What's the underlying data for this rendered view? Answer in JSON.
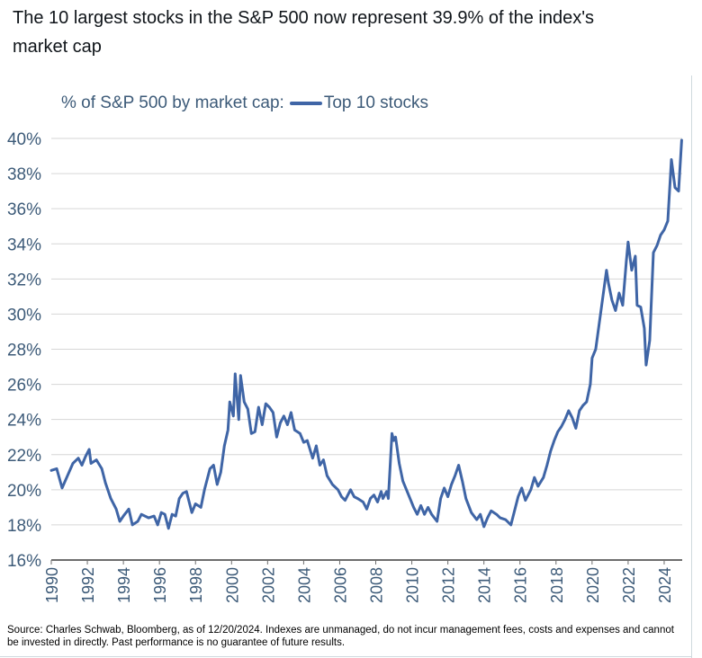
{
  "post": {
    "headline": "The 10 largest stocks in the S&P 500 now represent 39.9% of the index's market cap"
  },
  "colors": {
    "line": "#3f65a6",
    "grid": "#d6d6d6",
    "axis": "#6e6e6e",
    "label": "#3c5a78"
  },
  "chart_data": {
    "type": "line",
    "title": "% of S&P 500 by market cap:",
    "series": [
      {
        "name": "Top 10 stocks",
        "points": [
          [
            1990.0,
            21.1
          ],
          [
            1990.3,
            21.2
          ],
          [
            1990.6,
            20.1
          ],
          [
            1990.9,
            20.8
          ],
          [
            1991.2,
            21.5
          ],
          [
            1991.5,
            21.8
          ],
          [
            1991.7,
            21.4
          ],
          [
            1991.9,
            21.9
          ],
          [
            1992.1,
            22.3
          ],
          [
            1992.2,
            21.5
          ],
          [
            1992.5,
            21.7
          ],
          [
            1992.8,
            21.2
          ],
          [
            1993.0,
            20.4
          ],
          [
            1993.3,
            19.5
          ],
          [
            1993.6,
            18.9
          ],
          [
            1993.8,
            18.2
          ],
          [
            1994.0,
            18.5
          ],
          [
            1994.3,
            18.9
          ],
          [
            1994.5,
            18.0
          ],
          [
            1994.8,
            18.2
          ],
          [
            1995.0,
            18.6
          ],
          [
            1995.4,
            18.4
          ],
          [
            1995.7,
            18.5
          ],
          [
            1995.9,
            18.0
          ],
          [
            1996.1,
            18.7
          ],
          [
            1996.3,
            18.6
          ],
          [
            1996.5,
            17.8
          ],
          [
            1996.7,
            18.6
          ],
          [
            1996.9,
            18.5
          ],
          [
            1997.1,
            19.5
          ],
          [
            1997.3,
            19.8
          ],
          [
            1997.5,
            19.9
          ],
          [
            1997.8,
            18.7
          ],
          [
            1998.0,
            19.2
          ],
          [
            1998.3,
            19.0
          ],
          [
            1998.5,
            20.0
          ],
          [
            1998.8,
            21.2
          ],
          [
            1999.0,
            21.4
          ],
          [
            1999.2,
            20.3
          ],
          [
            1999.4,
            21.0
          ],
          [
            1999.6,
            22.5
          ],
          [
            1999.8,
            23.4
          ],
          [
            1999.9,
            25.0
          ],
          [
            2000.1,
            24.2
          ],
          [
            2000.2,
            26.6
          ],
          [
            2000.4,
            24.0
          ],
          [
            2000.5,
            26.5
          ],
          [
            2000.7,
            25.0
          ],
          [
            2000.9,
            24.6
          ],
          [
            2001.1,
            23.2
          ],
          [
            2001.3,
            23.3
          ],
          [
            2001.5,
            24.7
          ],
          [
            2001.7,
            23.7
          ],
          [
            2001.9,
            24.9
          ],
          [
            2002.1,
            24.7
          ],
          [
            2002.3,
            24.4
          ],
          [
            2002.5,
            23.0
          ],
          [
            2002.7,
            23.8
          ],
          [
            2002.9,
            24.2
          ],
          [
            2003.1,
            23.7
          ],
          [
            2003.3,
            24.4
          ],
          [
            2003.5,
            23.4
          ],
          [
            2003.8,
            23.2
          ],
          [
            2004.0,
            22.7
          ],
          [
            2004.2,
            22.8
          ],
          [
            2004.5,
            21.8
          ],
          [
            2004.7,
            22.5
          ],
          [
            2004.9,
            21.4
          ],
          [
            2005.1,
            21.7
          ],
          [
            2005.3,
            20.8
          ],
          [
            2005.6,
            20.3
          ],
          [
            2005.9,
            20.0
          ],
          [
            2006.1,
            19.6
          ],
          [
            2006.3,
            19.4
          ],
          [
            2006.6,
            20.0
          ],
          [
            2006.8,
            19.6
          ],
          [
            2007.0,
            19.5
          ],
          [
            2007.3,
            19.3
          ],
          [
            2007.5,
            18.9
          ],
          [
            2007.7,
            19.5
          ],
          [
            2007.9,
            19.7
          ],
          [
            2008.1,
            19.3
          ],
          [
            2008.3,
            19.9
          ],
          [
            2008.4,
            19.5
          ],
          [
            2008.6,
            19.9
          ],
          [
            2008.7,
            19.5
          ],
          [
            2008.9,
            23.2
          ],
          [
            2009.0,
            22.8
          ],
          [
            2009.1,
            23.0
          ],
          [
            2009.3,
            21.5
          ],
          [
            2009.5,
            20.5
          ],
          [
            2009.7,
            20.0
          ],
          [
            2009.9,
            19.5
          ],
          [
            2010.1,
            19.0
          ],
          [
            2010.3,
            18.6
          ],
          [
            2010.5,
            19.1
          ],
          [
            2010.7,
            18.6
          ],
          [
            2010.9,
            19.0
          ],
          [
            2011.1,
            18.6
          ],
          [
            2011.4,
            18.2
          ],
          [
            2011.6,
            19.5
          ],
          [
            2011.8,
            20.1
          ],
          [
            2012.0,
            19.6
          ],
          [
            2012.2,
            20.3
          ],
          [
            2012.4,
            20.8
          ],
          [
            2012.6,
            21.4
          ],
          [
            2012.8,
            20.5
          ],
          [
            2013.0,
            19.5
          ],
          [
            2013.3,
            18.7
          ],
          [
            2013.6,
            18.3
          ],
          [
            2013.8,
            18.6
          ],
          [
            2014.0,
            17.9
          ],
          [
            2014.2,
            18.4
          ],
          [
            2014.4,
            18.8
          ],
          [
            2014.7,
            18.6
          ],
          [
            2014.9,
            18.4
          ],
          [
            2015.2,
            18.3
          ],
          [
            2015.5,
            18.0
          ],
          [
            2015.7,
            18.8
          ],
          [
            2015.9,
            19.6
          ],
          [
            2016.1,
            20.1
          ],
          [
            2016.3,
            19.4
          ],
          [
            2016.6,
            20.0
          ],
          [
            2016.8,
            20.7
          ],
          [
            2017.0,
            20.2
          ],
          [
            2017.3,
            20.7
          ],
          [
            2017.5,
            21.4
          ],
          [
            2017.7,
            22.2
          ],
          [
            2017.9,
            22.8
          ],
          [
            2018.1,
            23.3
          ],
          [
            2018.3,
            23.6
          ],
          [
            2018.5,
            24.0
          ],
          [
            2018.7,
            24.5
          ],
          [
            2018.9,
            24.1
          ],
          [
            2019.1,
            23.5
          ],
          [
            2019.3,
            24.5
          ],
          [
            2019.5,
            24.8
          ],
          [
            2019.7,
            25.0
          ],
          [
            2019.9,
            26.0
          ],
          [
            2020.0,
            27.5
          ],
          [
            2020.2,
            28.0
          ],
          [
            2020.4,
            29.5
          ],
          [
            2020.6,
            31.0
          ],
          [
            2020.8,
            32.5
          ],
          [
            2020.9,
            31.8
          ],
          [
            2021.1,
            30.8
          ],
          [
            2021.3,
            30.2
          ],
          [
            2021.5,
            31.2
          ],
          [
            2021.7,
            30.5
          ],
          [
            2021.9,
            33.0
          ],
          [
            2022.0,
            34.1
          ],
          [
            2022.2,
            32.5
          ],
          [
            2022.4,
            33.3
          ],
          [
            2022.5,
            30.5
          ],
          [
            2022.7,
            30.4
          ],
          [
            2022.9,
            29.2
          ],
          [
            2023.0,
            27.1
          ],
          [
            2023.2,
            28.5
          ],
          [
            2023.4,
            33.5
          ],
          [
            2023.6,
            33.9
          ],
          [
            2023.8,
            34.5
          ],
          [
            2024.0,
            34.8
          ],
          [
            2024.2,
            35.3
          ],
          [
            2024.4,
            38.8
          ],
          [
            2024.6,
            37.2
          ],
          [
            2024.8,
            37.0
          ],
          [
            2024.97,
            39.9
          ]
        ]
      }
    ],
    "xlim": [
      1990,
      2025
    ],
    "ylim": [
      16,
      40
    ],
    "xticks": [
      1990,
      1992,
      1994,
      1996,
      1998,
      2000,
      2002,
      2004,
      2006,
      2008,
      2010,
      2012,
      2014,
      2016,
      2018,
      2020,
      2022,
      2024
    ],
    "xtick_labels": [
      "1990",
      "1992",
      "1994",
      "1996",
      "1998",
      "2000",
      "2002",
      "2004",
      "2006",
      "2008",
      "2010",
      "2012",
      "2014",
      "2016",
      "2018",
      "2020",
      "2022",
      "2024"
    ],
    "yticks": [
      16,
      18,
      20,
      22,
      24,
      26,
      28,
      30,
      32,
      34,
      36,
      38,
      40
    ],
    "ytick_labels": [
      "16%",
      "18%",
      "20%",
      "22%",
      "24%",
      "26%",
      "28%",
      "30%",
      "32%",
      "34%",
      "36%",
      "38%",
      "40%"
    ],
    "grid": true,
    "legend_label": "Top 10 stocks",
    "source": "Source: Charles Schwab, Bloomberg, as of 12/20/2024. Indexes are unmanaged, do not incur management fees, costs and expenses and cannot be invested in directly. Past performance is no guarantee of future results."
  }
}
